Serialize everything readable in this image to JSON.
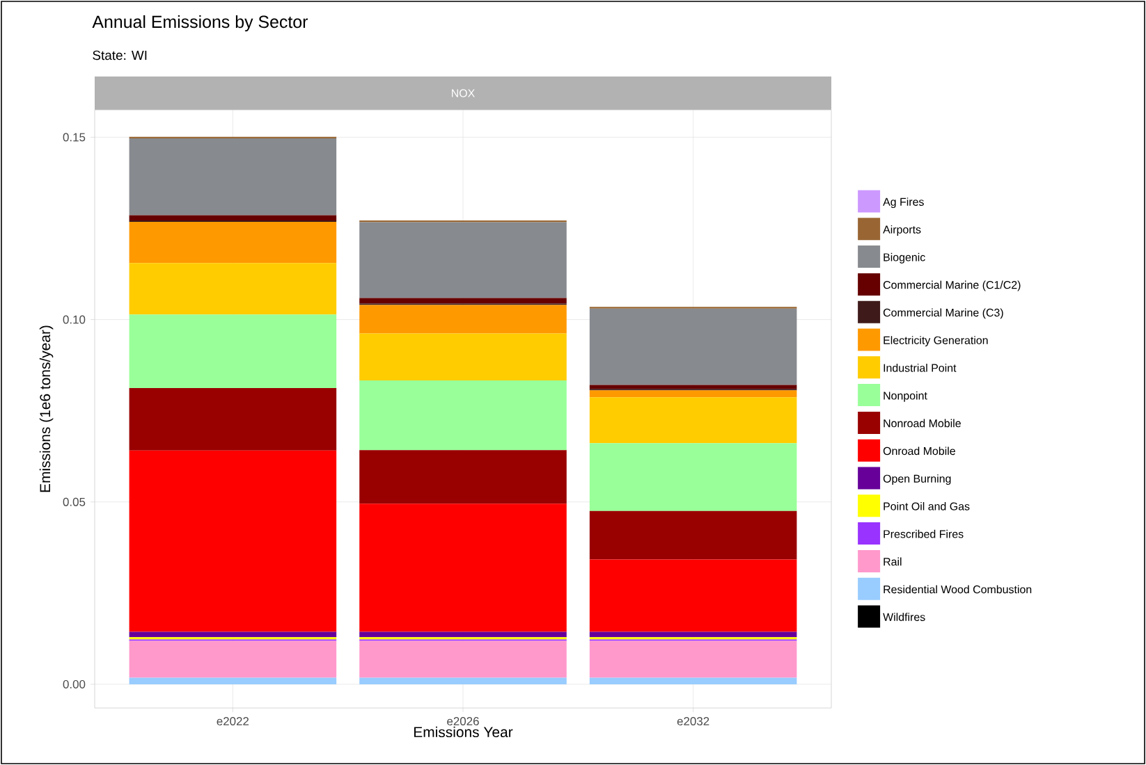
{
  "chart_data": {
    "type": "bar",
    "stacked": true,
    "title": "Annual Emissions by Sector",
    "subtitle": "State: WI",
    "annotations": [
      "NOX"
    ],
    "xlabel": "Emissions Year",
    "ylabel": "Emissions (1e6 tons/year)",
    "categories": [
      "e2022",
      "e2026",
      "e2032"
    ],
    "ylim": [
      -0.0065,
      0.1575
    ],
    "yticks": [
      {
        "value": 0,
        "label": "0.00"
      },
      {
        "value": 0.05,
        "label": "0.05"
      },
      {
        "value": 0.1,
        "label": "0.10"
      },
      {
        "value": 0.15,
        "label": "0.15"
      }
    ],
    "grid": true,
    "legend": "right",
    "series": [
      {
        "name": "Wildfires",
        "color": "#000000",
        "values": [
          0,
          0,
          0
        ]
      },
      {
        "name": "Residential Wood Combustion",
        "color": "#99ccff",
        "values": [
          0.0018,
          0.0018,
          0.0018
        ]
      },
      {
        "name": "Rail",
        "color": "#ff99cc",
        "values": [
          0.0101,
          0.0101,
          0.0101
        ]
      },
      {
        "name": "Prescribed Fires",
        "color": "#9933ff",
        "values": [
          0.0004,
          0.0004,
          0.0004
        ]
      },
      {
        "name": "Point Oil and Gas",
        "color": "#ffff00",
        "values": [
          0.0006,
          0.0006,
          0.0006
        ]
      },
      {
        "name": "Open Burning",
        "color": "#660099",
        "values": [
          0.0015,
          0.0015,
          0.0015
        ]
      },
      {
        "name": "Onroad Mobile",
        "color": "#ff0000",
        "values": [
          0.0497,
          0.0351,
          0.0198
        ]
      },
      {
        "name": "Nonroad Mobile",
        "color": "#990000",
        "values": [
          0.0171,
          0.0147,
          0.0133
        ]
      },
      {
        "name": "Nonpoint",
        "color": "#99ff99",
        "values": [
          0.0202,
          0.0191,
          0.0186
        ]
      },
      {
        "name": "Industrial Point",
        "color": "#ffcc00",
        "values": [
          0.0141,
          0.0129,
          0.0126
        ]
      },
      {
        "name": "Electricity Generation",
        "color": "#ff9900",
        "values": [
          0.0113,
          0.0078,
          0.0019
        ]
      },
      {
        "name": "Commercial Marine (C3)",
        "color": "#3f1a1a",
        "values": [
          0.0004,
          0.0004,
          0.0004
        ]
      },
      {
        "name": "Commercial Marine (C1/C2)",
        "color": "#660000",
        "values": [
          0.0014,
          0.0015,
          0.0011
        ]
      },
      {
        "name": "Biogenic",
        "color": "#878a8f",
        "values": [
          0.0211,
          0.0208,
          0.0209
        ]
      },
      {
        "name": "Airports",
        "color": "#996633",
        "values": [
          0.0004,
          0.0005,
          0.0005
        ]
      },
      {
        "name": "Ag Fires",
        "color": "#cc99ff",
        "values": [
          0,
          0,
          0
        ]
      }
    ]
  }
}
